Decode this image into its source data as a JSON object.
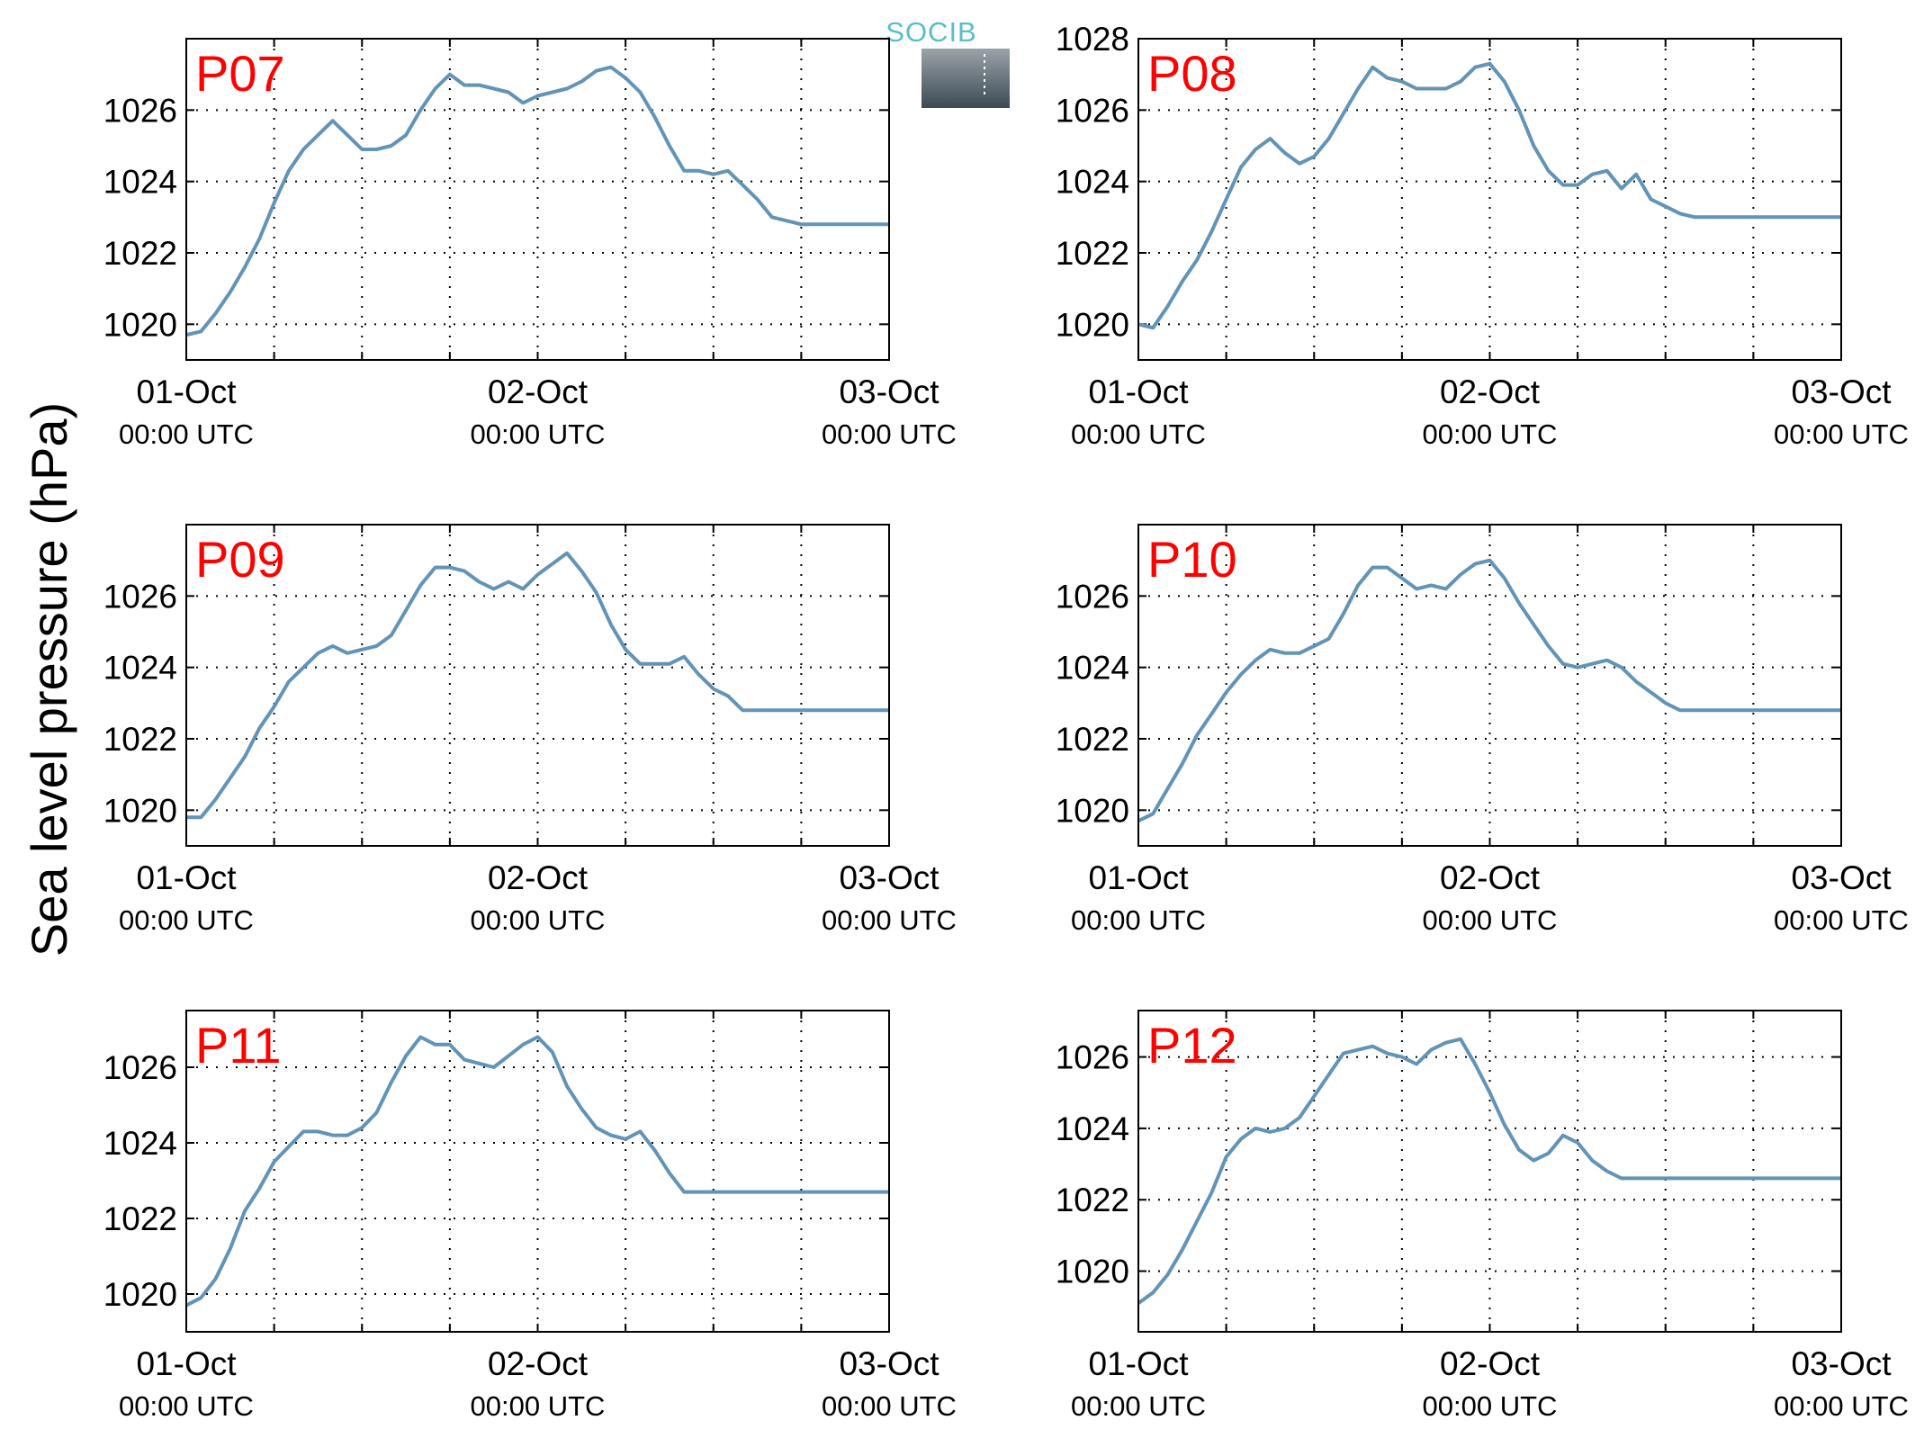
{
  "ylabel": "Sea level pressure (hPa)",
  "logo": {
    "text": "SOCIB",
    "text_color": "#5bbccc",
    "box_top_color": "#9aa3a8",
    "box_bottom_color": "#3c4a54"
  },
  "colors": {
    "line": "#6393b6",
    "panel_label": "#ff0000",
    "axis": "#000000",
    "grid": "#000000"
  },
  "x_ticks": [
    {
      "date": "01-Oct",
      "time": "00:00 UTC",
      "value": 0
    },
    {
      "date": "02-Oct",
      "time": "00:00 UTC",
      "value": 24
    },
    {
      "date": "03-Oct",
      "time": "00:00 UTC",
      "value": 48
    }
  ],
  "chart_data": [
    {
      "type": "line",
      "title": "P07",
      "xlim": [
        0,
        48
      ],
      "ylim": [
        1019,
        1028
      ],
      "yticks": [
        1020,
        1022,
        1024,
        1026
      ],
      "x_unit": "hours since 01-Oct 00:00 UTC",
      "grid": true,
      "x": [
        0,
        1,
        2,
        3,
        4,
        5,
        6,
        7,
        8,
        9,
        10,
        11,
        12,
        13,
        14,
        15,
        16,
        17,
        18,
        19,
        20,
        21,
        22,
        23,
        24,
        25,
        26,
        27,
        28,
        29,
        30,
        31,
        32,
        33,
        34,
        35,
        36,
        37,
        38,
        39,
        40,
        41,
        42,
        43,
        44,
        45,
        46,
        47,
        48
      ],
      "values": [
        1019.7,
        1019.8,
        1020.3,
        1020.9,
        1021.6,
        1022.4,
        1023.4,
        1024.3,
        1024.9,
        1025.3,
        1025.7,
        1025.3,
        1024.9,
        1024.9,
        1025.0,
        1025.3,
        1026.0,
        1026.6,
        1027.0,
        1026.7,
        1026.7,
        1026.6,
        1026.5,
        1026.2,
        1026.4,
        1026.5,
        1026.6,
        1026.8,
        1027.1,
        1027.2,
        1026.9,
        1026.5,
        1025.8,
        1025.0,
        1024.3,
        1024.3,
        1024.2,
        1024.3,
        1023.9,
        1023.5,
        1023.0,
        1022.9,
        1022.8,
        1022.8,
        1022.8,
        1022.8,
        1022.8,
        1022.8,
        1022.8
      ]
    },
    {
      "type": "line",
      "title": "P08",
      "xlim": [
        0,
        48
      ],
      "ylim": [
        1019,
        1028
      ],
      "yticks": [
        1020,
        1022,
        1024,
        1026,
        1028
      ],
      "x_unit": "hours since 01-Oct 00:00 UTC",
      "grid": true,
      "x": [
        0,
        1,
        2,
        3,
        4,
        5,
        6,
        7,
        8,
        9,
        10,
        11,
        12,
        13,
        14,
        15,
        16,
        17,
        18,
        19,
        20,
        21,
        22,
        23,
        24,
        25,
        26,
        27,
        28,
        29,
        30,
        31,
        32,
        33,
        34,
        35,
        36,
        37,
        38,
        39,
        40,
        41,
        42,
        43,
        44,
        45,
        46,
        47,
        48
      ],
      "values": [
        1020.0,
        1019.9,
        1020.5,
        1021.2,
        1021.8,
        1022.6,
        1023.5,
        1024.4,
        1024.9,
        1025.2,
        1024.8,
        1024.5,
        1024.7,
        1025.2,
        1025.9,
        1026.6,
        1027.2,
        1026.9,
        1026.8,
        1026.6,
        1026.6,
        1026.6,
        1026.8,
        1027.2,
        1027.3,
        1026.8,
        1026.0,
        1025.0,
        1024.3,
        1023.9,
        1023.9,
        1024.2,
        1024.3,
        1023.8,
        1024.2,
        1023.5,
        1023.3,
        1023.1,
        1023.0,
        1023.0,
        1023.0,
        1023.0,
        1023.0,
        1023.0,
        1023.0,
        1023.0,
        1023.0,
        1023.0,
        1023.0
      ]
    },
    {
      "type": "line",
      "title": "P09",
      "xlim": [
        0,
        48
      ],
      "ylim": [
        1019,
        1028
      ],
      "yticks": [
        1020,
        1022,
        1024,
        1026
      ],
      "x_unit": "hours since 01-Oct 00:00 UTC",
      "grid": true,
      "x": [
        0,
        1,
        2,
        3,
        4,
        5,
        6,
        7,
        8,
        9,
        10,
        11,
        12,
        13,
        14,
        15,
        16,
        17,
        18,
        19,
        20,
        21,
        22,
        23,
        24,
        25,
        26,
        27,
        28,
        29,
        30,
        31,
        32,
        33,
        34,
        35,
        36,
        37,
        38,
        39,
        40,
        41,
        42,
        43,
        44,
        45,
        46,
        47,
        48
      ],
      "values": [
        1019.8,
        1019.8,
        1020.3,
        1020.9,
        1021.5,
        1022.3,
        1022.9,
        1023.6,
        1024.0,
        1024.4,
        1024.6,
        1024.4,
        1024.5,
        1024.6,
        1024.9,
        1025.6,
        1026.3,
        1026.8,
        1026.8,
        1026.7,
        1026.4,
        1026.2,
        1026.4,
        1026.2,
        1026.6,
        1026.9,
        1027.2,
        1026.7,
        1026.1,
        1025.2,
        1024.5,
        1024.1,
        1024.1,
        1024.1,
        1024.3,
        1023.8,
        1023.4,
        1023.2,
        1022.8,
        1022.8,
        1022.8,
        1022.8,
        1022.8,
        1022.8,
        1022.8,
        1022.8,
        1022.8,
        1022.8,
        1022.8
      ]
    },
    {
      "type": "line",
      "title": "P10",
      "xlim": [
        0,
        48
      ],
      "ylim": [
        1019,
        1028
      ],
      "yticks": [
        1020,
        1022,
        1024,
        1026
      ],
      "x_unit": "hours since 01-Oct 00:00 UTC",
      "grid": true,
      "x": [
        0,
        1,
        2,
        3,
        4,
        5,
        6,
        7,
        8,
        9,
        10,
        11,
        12,
        13,
        14,
        15,
        16,
        17,
        18,
        19,
        20,
        21,
        22,
        23,
        24,
        25,
        26,
        27,
        28,
        29,
        30,
        31,
        32,
        33,
        34,
        35,
        36,
        37,
        38,
        39,
        40,
        41,
        42,
        43,
        44,
        45,
        46,
        47,
        48
      ],
      "values": [
        1019.7,
        1019.9,
        1020.6,
        1021.3,
        1022.1,
        1022.7,
        1023.3,
        1023.8,
        1024.2,
        1024.5,
        1024.4,
        1024.4,
        1024.6,
        1024.8,
        1025.5,
        1026.3,
        1026.8,
        1026.8,
        1026.5,
        1026.2,
        1026.3,
        1026.2,
        1026.6,
        1026.9,
        1027.0,
        1026.5,
        1025.8,
        1025.2,
        1024.6,
        1024.1,
        1024.0,
        1024.1,
        1024.2,
        1024.0,
        1023.6,
        1023.3,
        1023.0,
        1022.8,
        1022.8,
        1022.8,
        1022.8,
        1022.8,
        1022.8,
        1022.8,
        1022.8,
        1022.8,
        1022.8,
        1022.8,
        1022.8
      ]
    },
    {
      "type": "line",
      "title": "P11",
      "xlim": [
        0,
        48
      ],
      "ylim": [
        1019,
        1027.5
      ],
      "yticks": [
        1020,
        1022,
        1024,
        1026
      ],
      "x_unit": "hours since 01-Oct 00:00 UTC",
      "grid": true,
      "x": [
        0,
        1,
        2,
        3,
        4,
        5,
        6,
        7,
        8,
        9,
        10,
        11,
        12,
        13,
        14,
        15,
        16,
        17,
        18,
        19,
        20,
        21,
        22,
        23,
        24,
        25,
        26,
        27,
        28,
        29,
        30,
        31,
        32,
        33,
        34,
        35,
        36,
        37,
        38,
        39,
        40,
        41,
        42,
        43,
        44,
        45,
        46,
        47,
        48
      ],
      "values": [
        1019.7,
        1019.9,
        1020.4,
        1021.2,
        1022.2,
        1022.8,
        1023.5,
        1023.9,
        1024.3,
        1024.3,
        1024.2,
        1024.2,
        1024.4,
        1024.8,
        1025.6,
        1026.3,
        1026.8,
        1026.6,
        1026.6,
        1026.2,
        1026.1,
        1026.0,
        1026.3,
        1026.6,
        1026.8,
        1026.4,
        1025.5,
        1024.9,
        1024.4,
        1024.2,
        1024.1,
        1024.3,
        1023.8,
        1023.2,
        1022.7,
        1022.7,
        1022.7,
        1022.7,
        1022.7,
        1022.7,
        1022.7,
        1022.7,
        1022.7,
        1022.7,
        1022.7,
        1022.7,
        1022.7,
        1022.7,
        1022.7
      ]
    },
    {
      "type": "line",
      "title": "P12",
      "xlim": [
        0,
        48
      ],
      "ylim": [
        1018.3,
        1027.3
      ],
      "yticks": [
        1020,
        1022,
        1024,
        1026
      ],
      "x_unit": "hours since 01-Oct 00:00 UTC",
      "grid": true,
      "x": [
        0,
        1,
        2,
        3,
        4,
        5,
        6,
        7,
        8,
        9,
        10,
        11,
        12,
        13,
        14,
        15,
        16,
        17,
        18,
        19,
        20,
        21,
        22,
        23,
        24,
        25,
        26,
        27,
        28,
        29,
        30,
        31,
        32,
        33,
        34,
        35,
        36,
        37,
        38,
        39,
        40,
        41,
        42,
        43,
        44,
        45,
        46,
        47,
        48
      ],
      "values": [
        1019.1,
        1019.4,
        1019.9,
        1020.6,
        1021.4,
        1022.2,
        1023.2,
        1023.7,
        1024.0,
        1023.9,
        1024.0,
        1024.3,
        1024.9,
        1025.5,
        1026.1,
        1026.2,
        1026.3,
        1026.1,
        1026.0,
        1025.8,
        1026.2,
        1026.4,
        1026.5,
        1025.8,
        1025.0,
        1024.1,
        1023.4,
        1023.1,
        1023.3,
        1023.8,
        1023.6,
        1023.1,
        1022.8,
        1022.6,
        1022.6,
        1022.6,
        1022.6,
        1022.6,
        1022.6,
        1022.6,
        1022.6,
        1022.6,
        1022.6,
        1022.6,
        1022.6,
        1022.6,
        1022.6,
        1022.6,
        1022.6
      ]
    }
  ]
}
